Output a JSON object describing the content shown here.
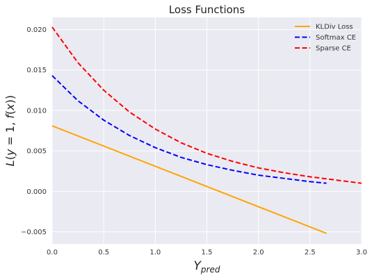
{
  "chart_data": {
    "type": "line",
    "title": "Loss Functions",
    "xlabel": "Y_pred",
    "ylabel": "L(y = 1, f(x))",
    "xlim": [
      0,
      3
    ],
    "ylim": [
      -0.0065,
      0.0215
    ],
    "xticks": [
      0,
      0.5,
      1,
      1.5,
      2,
      2.5,
      3
    ],
    "xtick_labels": [
      "0.0",
      "0.5",
      "1.0",
      "1.5",
      "2.0",
      "2.5",
      "3.0"
    ],
    "yticks": [
      -0.005,
      0,
      0.005,
      0.01,
      0.015,
      0.02
    ],
    "ytick_labels": [
      "−0.005",
      "0.000",
      "0.005",
      "0.010",
      "0.015",
      "0.020"
    ],
    "grid": true,
    "legend_position": "top-right",
    "colors": {
      "plot_background": "#EAEAF2",
      "grid": "#FFFFFF",
      "tick_text": "#333333"
    },
    "series": [
      {
        "name": "KLDiv Loss",
        "color": "#FFA500",
        "dash": "solid",
        "x": [
          0,
          2.66
        ],
        "y": [
          0.0081,
          -0.0052
        ]
      },
      {
        "name": "Softmax CE",
        "color": "#0000FF",
        "dash": "dashed",
        "x": [
          0,
          0.25,
          0.5,
          0.75,
          1.0,
          1.25,
          1.5,
          1.75,
          2.0,
          2.25,
          2.5,
          2.66
        ],
        "y": [
          0.0143,
          0.0112,
          0.0088,
          0.0069,
          0.0054,
          0.0042,
          0.0033,
          0.0026,
          0.002,
          0.0016,
          0.0012,
          0.001
        ]
      },
      {
        "name": "Sparse CE",
        "color": "#FF0000",
        "dash": "dashed",
        "x": [
          0,
          0.25,
          0.5,
          0.75,
          1.0,
          1.25,
          1.5,
          1.75,
          2.0,
          2.25,
          2.5,
          2.75,
          3.0
        ],
        "y": [
          0.0203,
          0.0159,
          0.0125,
          0.0098,
          0.0077,
          0.006,
          0.0047,
          0.0037,
          0.0029,
          0.0023,
          0.0018,
          0.0014,
          0.001
        ]
      }
    ]
  }
}
